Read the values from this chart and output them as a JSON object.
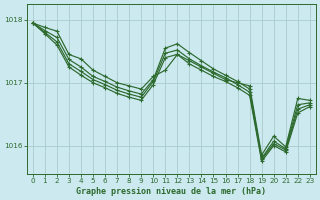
{
  "background_color": "#cce9f0",
  "grid_color": "#aacccc",
  "line_color": "#2d6a2d",
  "xlabel": "Graphe pression niveau de la mer (hPa)",
  "ylim": [
    1015.55,
    1018.25
  ],
  "xlim": [
    -0.5,
    23.5
  ],
  "yticks": [
    1016,
    1017,
    1018
  ],
  "xticks": [
    0,
    1,
    2,
    3,
    4,
    5,
    6,
    7,
    8,
    9,
    10,
    11,
    12,
    13,
    14,
    15,
    16,
    17,
    18,
    19,
    20,
    21,
    22,
    23
  ],
  "series": [
    [
      1017.95,
      1017.88,
      1017.82,
      1017.45,
      1017.38,
      1017.2,
      1017.1,
      1017.0,
      1016.95,
      1016.9,
      1017.1,
      1017.2,
      1017.45,
      1017.35,
      1017.25,
      1017.15,
      1017.05,
      1017.0,
      1016.95,
      1015.85,
      1016.15,
      1015.98,
      1016.75,
      1016.72
    ],
    [
      1017.95,
      1017.83,
      1017.72,
      1017.37,
      1017.25,
      1017.1,
      1017.02,
      1016.93,
      1016.87,
      1016.82,
      1017.05,
      1017.55,
      1017.62,
      1017.48,
      1017.35,
      1017.22,
      1017.12,
      1017.02,
      1016.9,
      1015.8,
      1016.07,
      1015.95,
      1016.65,
      1016.68
    ],
    [
      1017.95,
      1017.8,
      1017.65,
      1017.3,
      1017.18,
      1017.05,
      1016.97,
      1016.88,
      1016.82,
      1016.77,
      1017.02,
      1017.47,
      1017.52,
      1017.38,
      1017.27,
      1017.17,
      1017.08,
      1016.97,
      1016.85,
      1015.78,
      1016.03,
      1015.93,
      1016.58,
      1016.65
    ],
    [
      1017.95,
      1017.78,
      1017.6,
      1017.25,
      1017.12,
      1017.0,
      1016.92,
      1016.83,
      1016.77,
      1016.72,
      1016.97,
      1017.4,
      1017.45,
      1017.3,
      1017.2,
      1017.1,
      1017.02,
      1016.92,
      1016.8,
      1015.75,
      1016.0,
      1015.9,
      1016.52,
      1016.62
    ]
  ],
  "figsize": [
    3.2,
    2.0
  ],
  "dpi": 100
}
